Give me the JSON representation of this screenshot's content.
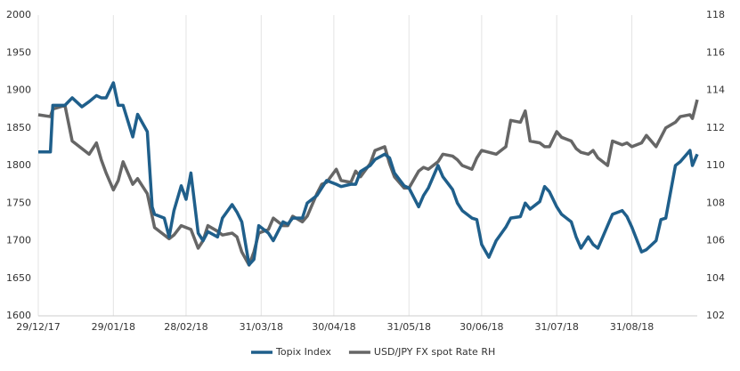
{
  "chart_data": {
    "type": "line",
    "x": [
      "29/12/17",
      "03/01/18",
      "04/01/18",
      "09/01/18",
      "12/01/18",
      "16/01/18",
      "19/01/18",
      "22/01/18",
      "24/01/18",
      "26/01/18",
      "29/01/18",
      "31/01/18",
      "02/02/18",
      "06/02/18",
      "08/02/18",
      "12/02/18",
      "14/02/18",
      "15/02/18",
      "19/02/18",
      "21/02/18",
      "23/02/18",
      "26/02/18",
      "28/02/18",
      "02/03/18",
      "05/03/18",
      "07/03/18",
      "09/03/18",
      "13/03/18",
      "15/03/18",
      "19/03/18",
      "21/03/18",
      "23/03/18",
      "26/03/18",
      "28/03/18",
      "30/03/18",
      "03/04/18",
      "05/04/18",
      "09/04/18",
      "11/04/18",
      "13/04/18",
      "17/04/18",
      "19/04/18",
      "23/04/18",
      "25/04/18",
      "27/04/18",
      "01/05/18",
      "03/05/18",
      "07/05/18",
      "09/05/18",
      "11/05/18",
      "15/05/18",
      "17/05/18",
      "21/05/18",
      "23/05/18",
      "25/05/18",
      "29/05/18",
      "31/05/18",
      "04/06/18",
      "06/06/18",
      "08/06/18",
      "12/06/18",
      "14/06/18",
      "18/06/18",
      "20/06/18",
      "22/06/18",
      "26/06/18",
      "28/06/18",
      "30/06/18",
      "03/07/18",
      "06/07/18",
      "10/07/18",
      "12/07/18",
      "16/07/18",
      "18/07/18",
      "20/07/18",
      "24/07/18",
      "26/07/18",
      "28/07/18",
      "31/07/18",
      "02/08/18",
      "06/08/18",
      "08/08/18",
      "10/08/18",
      "13/08/18",
      "15/08/18",
      "17/08/18",
      "21/08/18",
      "23/08/18",
      "27/08/18",
      "29/08/18",
      "31/08/18",
      "04/09/18",
      "06/09/18",
      "10/09/18",
      "12/09/18",
      "14/09/18",
      "18/09/18",
      "20/09/18",
      "24/09/18",
      "25/09/18",
      "27/09/18"
    ],
    "series": [
      {
        "name": "Topix Index",
        "color": "#1f5f8b",
        "axis": "y",
        "values": [
          1818,
          1818,
          1880,
          1880,
          1890,
          1878,
          1885,
          1893,
          1890,
          1890,
          1910,
          1880,
          1880,
          1838,
          1868,
          1845,
          1745,
          1735,
          1730,
          1705,
          1740,
          1773,
          1755,
          1790,
          1710,
          1700,
          1712,
          1705,
          1730,
          1748,
          1738,
          1725,
          1668,
          1675,
          1720,
          1710,
          1700,
          1725,
          1722,
          1730,
          1730,
          1750,
          1760,
          1770,
          1780,
          1775,
          1772,
          1775,
          1775,
          1792,
          1800,
          1808,
          1815,
          1810,
          1790,
          1773,
          1770,
          1745,
          1760,
          1770,
          1800,
          1785,
          1768,
          1750,
          1740,
          1730,
          1728,
          1695,
          1678,
          1700,
          1718,
          1730,
          1732,
          1750,
          1742,
          1752,
          1772,
          1765,
          1745,
          1735,
          1725,
          1705,
          1690,
          1705,
          1695,
          1690,
          1720,
          1735,
          1740,
          1732,
          1718,
          1685,
          1688,
          1700,
          1728,
          1730,
          1800,
          1805,
          1820,
          1800,
          1815
        ]
      },
      {
        "name": "USD/JPY FX spot Rate RH",
        "color": "#666666",
        "axis": "y2",
        "values": [
          112.7,
          112.6,
          113.0,
          113.2,
          111.3,
          110.9,
          110.6,
          111.2,
          110.3,
          109.6,
          108.7,
          109.2,
          110.2,
          109.0,
          109.3,
          108.5,
          107.3,
          106.7,
          106.3,
          106.1,
          106.3,
          106.8,
          106.7,
          106.6,
          105.6,
          106.0,
          106.8,
          106.5,
          106.3,
          106.4,
          106.2,
          105.4,
          104.7,
          105.4,
          106.4,
          106.6,
          107.2,
          106.8,
          106.8,
          107.3,
          107.0,
          107.3,
          108.5,
          109.0,
          109.1,
          109.8,
          109.2,
          109.1,
          109.7,
          109.4,
          110.1,
          110.8,
          111.0,
          110.1,
          109.4,
          108.8,
          108.8,
          109.7,
          109.9,
          109.8,
          110.2,
          110.6,
          110.5,
          110.3,
          110.0,
          109.8,
          110.4,
          110.8,
          110.7,
          110.6,
          111.0,
          112.4,
          112.3,
          112.9,
          111.3,
          111.2,
          111.0,
          111.0,
          111.8,
          111.5,
          111.3,
          110.9,
          110.7,
          110.6,
          110.8,
          110.4,
          110.0,
          111.3,
          111.1,
          111.2,
          111.0,
          111.2,
          111.6,
          111.0,
          111.5,
          112.0,
          112.3,
          112.6,
          112.7,
          112.5,
          113.5
        ]
      }
    ],
    "xlim": [
      "29/12/17",
      "27/09/18"
    ],
    "xticks": [
      "29/12/17",
      "29/01/18",
      "28/02/18",
      "31/03/18",
      "30/04/18",
      "31/05/18",
      "30/06/18",
      "31/07/18",
      "31/08/18"
    ],
    "ylim": [
      1600,
      2000
    ],
    "yticks": [
      1600,
      1650,
      1700,
      1750,
      1800,
      1850,
      1900,
      1950,
      2000
    ],
    "y2lim": [
      102,
      118
    ],
    "y2ticks": [
      102,
      104,
      106,
      108,
      110,
      112,
      114,
      116,
      118
    ],
    "grid": "x",
    "legend": "bottom"
  }
}
